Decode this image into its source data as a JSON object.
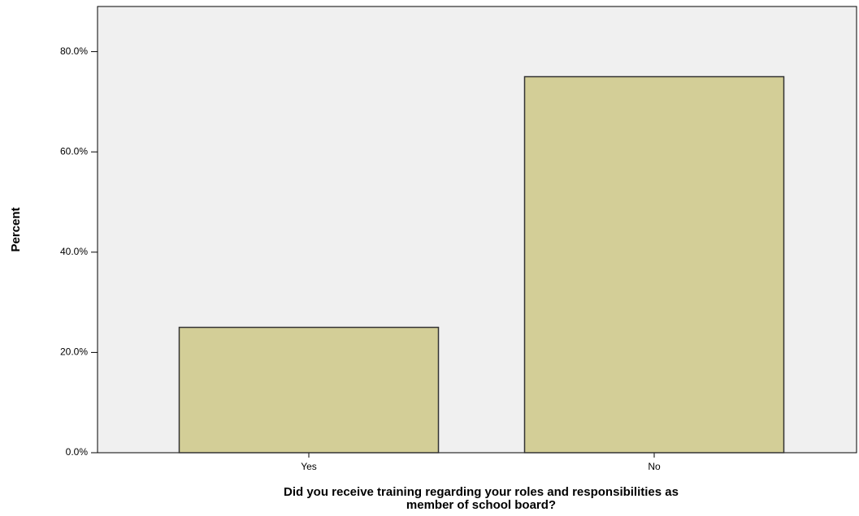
{
  "chart_data": {
    "type": "bar",
    "categories": [
      "Yes",
      "No"
    ],
    "values": [
      25,
      75
    ],
    "color": "#d3ce97",
    "ylabel": "Percent",
    "xlabel": [
      "Did you receive training regarding your roles and responsibilities as",
      "member of school board?"
    ],
    "ylim": [
      0,
      89
    ],
    "yticks": [
      {
        "value": 0,
        "label": "0.0%"
      },
      {
        "value": 20,
        "label": "20.0%"
      },
      {
        "value": 40,
        "label": "40.0%"
      },
      {
        "value": 60,
        "label": "60.0%"
      },
      {
        "value": 80,
        "label": "80.0%"
      }
    ],
    "grid": false
  }
}
